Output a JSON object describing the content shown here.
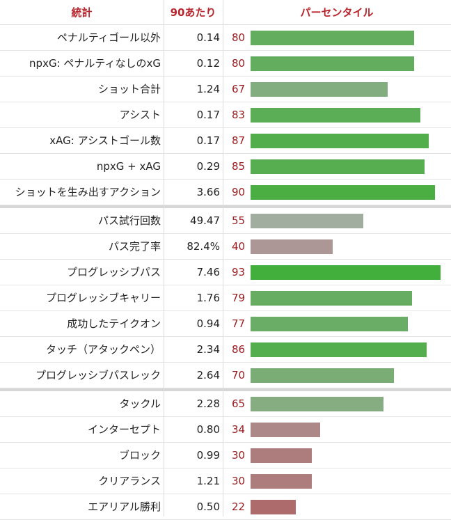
{
  "header": {
    "stat": "統計",
    "per90": "90あたり",
    "percentile": "パーセンタイル"
  },
  "rows": [
    {
      "stat": "ペナルティゴール以外",
      "per90": "0.14",
      "percentile": 80,
      "color": "#63ad5f",
      "group_start": false
    },
    {
      "stat": "npxG: ペナルティなしのxG",
      "per90": "0.12",
      "percentile": 80,
      "color": "#63ad5f",
      "group_start": false
    },
    {
      "stat": "ショット合計",
      "per90": "1.24",
      "percentile": 67,
      "color": "#82ad7e",
      "group_start": false
    },
    {
      "stat": "アシスト",
      "per90": "0.17",
      "percentile": 83,
      "color": "#5bae55",
      "group_start": false
    },
    {
      "stat": "xAG: アシストゴール数",
      "per90": "0.17",
      "percentile": 87,
      "color": "#52ae4b",
      "group_start": false
    },
    {
      "stat": "npxG + xAG",
      "per90": "0.29",
      "percentile": 85,
      "color": "#56ae50",
      "group_start": false
    },
    {
      "stat": "ショットを生み出すアクション",
      "per90": "3.66",
      "percentile": 90,
      "color": "#4aae43",
      "group_start": false
    },
    {
      "stat": "パス試行回数",
      "per90": "49.47",
      "percentile": 55,
      "color": "#a1ad9e",
      "group_start": true
    },
    {
      "stat": "パス完了率",
      "per90": "82.4%",
      "percentile": 40,
      "color": "#ad9696",
      "group_start": false
    },
    {
      "stat": "プログレッシブパス",
      "per90": "7.46",
      "percentile": 93,
      "color": "#42ae3b",
      "group_start": false
    },
    {
      "stat": "プログレッシブキャリー",
      "per90": "1.76",
      "percentile": 79,
      "color": "#66ad62",
      "group_start": false
    },
    {
      "stat": "成功したテイクオン",
      "per90": "0.94",
      "percentile": 77,
      "color": "#6aad66",
      "group_start": false
    },
    {
      "stat": "タッチ（アタックペン）",
      "per90": "2.34",
      "percentile": 86,
      "color": "#54ae4e",
      "group_start": false
    },
    {
      "stat": "プログレッシブパスレック",
      "per90": "2.64",
      "percentile": 70,
      "color": "#7aad76",
      "group_start": false
    },
    {
      "stat": "タックル",
      "per90": "2.28",
      "percentile": 65,
      "color": "#86ad82",
      "group_start": true
    },
    {
      "stat": "インターセプト",
      "per90": "0.80",
      "percentile": 34,
      "color": "#ad8888",
      "group_start": false
    },
    {
      "stat": "ブロック",
      "per90": "0.99",
      "percentile": 30,
      "color": "#ad7c7c",
      "group_start": false
    },
    {
      "stat": "クリアランス",
      "per90": "1.21",
      "percentile": 30,
      "color": "#ad7c7c",
      "group_start": false
    },
    {
      "stat": "エアリアル勝利",
      "per90": "0.50",
      "percentile": 22,
      "color": "#ad6b6b",
      "group_start": false
    }
  ]
}
